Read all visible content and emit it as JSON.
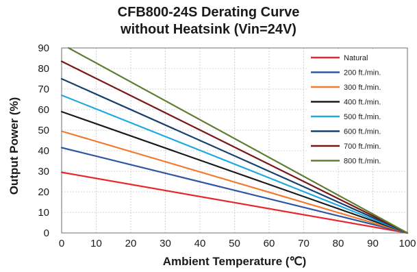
{
  "chart_data": {
    "type": "line",
    "title": [
      "CFB800-24S  Derating Curve",
      "without Heatsink (Vin=24V)"
    ],
    "xlabel": "Ambient Temperature (℃)",
    "ylabel": "Output Power (%)",
    "xlim": [
      0,
      100
    ],
    "ylim": [
      0,
      90
    ],
    "xticks": [
      0,
      10,
      20,
      30,
      40,
      50,
      60,
      70,
      80,
      90,
      100
    ],
    "yticks": [
      0,
      10,
      20,
      30,
      40,
      50,
      60,
      70,
      80,
      90
    ],
    "grid": true,
    "legend_position": "top-right",
    "series": [
      {
        "name": "Natural",
        "color": "#e8262b",
        "x": [
          0,
          100
        ],
        "y": [
          29.5,
          0
        ]
      },
      {
        "name": "200 ft./min.",
        "color": "#2f55a4",
        "x": [
          0,
          100
        ],
        "y": [
          41.5,
          0
        ]
      },
      {
        "name": "300 ft./min.",
        "color": "#f07a2d",
        "x": [
          0,
          100
        ],
        "y": [
          49.5,
          0
        ]
      },
      {
        "name": "400 ft./min.",
        "color": "#1a1a1a",
        "x": [
          0,
          100
        ],
        "y": [
          59,
          0
        ]
      },
      {
        "name": "500 ft./min.",
        "color": "#1fa9e1",
        "x": [
          0,
          100
        ],
        "y": [
          67,
          0
        ]
      },
      {
        "name": "600 ft./min.",
        "color": "#15416e",
        "x": [
          0,
          100
        ],
        "y": [
          75,
          0
        ]
      },
      {
        "name": "700 ft./min.",
        "color": "#7a1518",
        "x": [
          0,
          100
        ],
        "y": [
          83.5,
          0
        ]
      },
      {
        "name": "800 ft./min.",
        "color": "#5e7d2f",
        "x": [
          2,
          100
        ],
        "y": [
          90,
          0
        ]
      }
    ]
  }
}
